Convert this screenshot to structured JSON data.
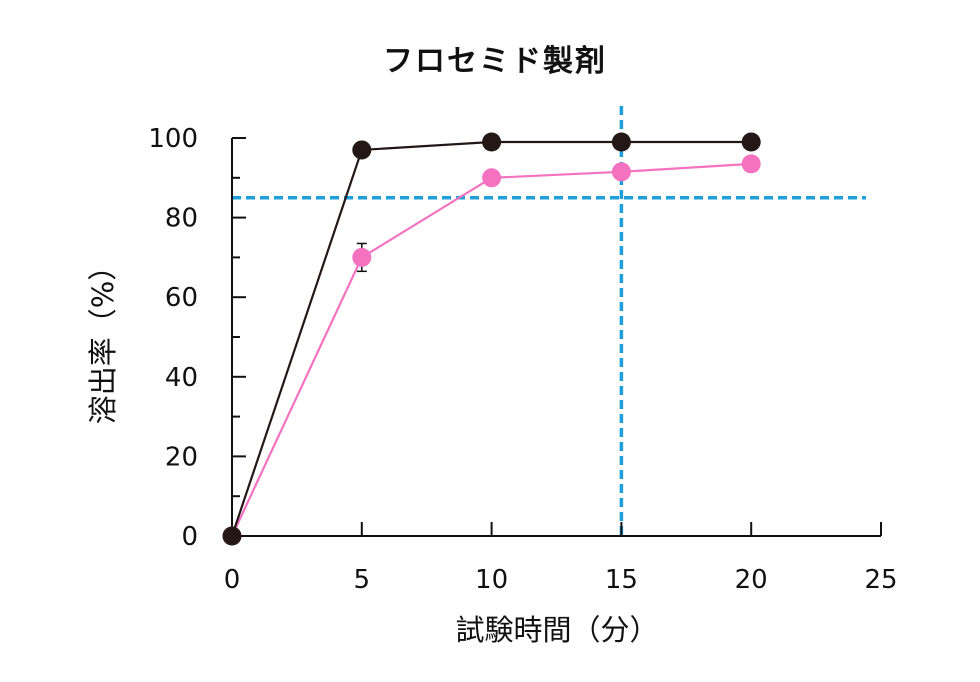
{
  "chart_data": {
    "type": "line",
    "title": "フロセミド製剤",
    "xlabel": "試験時間（分）",
    "ylabel": "溶出率（%）",
    "x": [
      0,
      5,
      10,
      15,
      20
    ],
    "xlim": [
      0,
      25
    ],
    "ylim": [
      0,
      100
    ],
    "xticks": [
      0,
      5,
      10,
      15,
      20,
      25
    ],
    "yticks": [
      0,
      20,
      40,
      60,
      80,
      100
    ],
    "grid": false,
    "series": [
      {
        "color": "#231815",
        "values": [
          0,
          97,
          99,
          99,
          99
        ]
      },
      {
        "color": "#f472c0",
        "values": [
          0,
          70,
          90,
          91.5,
          93.5
        ],
        "error": [
          0,
          3.5,
          0,
          0,
          0
        ]
      }
    ],
    "reference_lines": [
      {
        "axis": "y",
        "value": 85,
        "color": "#1f9fd9",
        "style": "dashed"
      },
      {
        "axis": "x",
        "value": 15,
        "color": "#1f9fd9",
        "style": "dashed"
      }
    ]
  }
}
